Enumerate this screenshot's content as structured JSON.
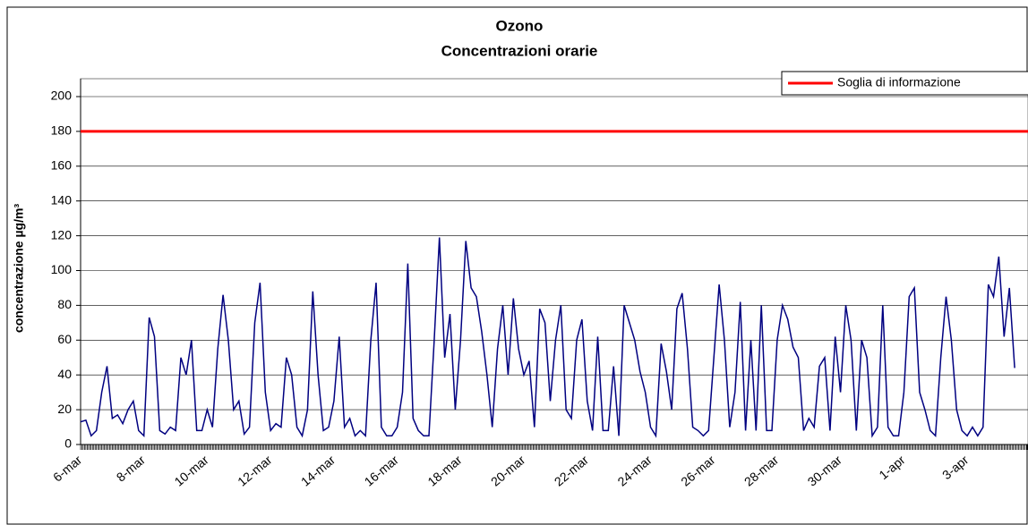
{
  "chart_data": {
    "type": "line",
    "title": "Ozono",
    "subtitle": "Concentrazioni orarie",
    "y_label": "concentrazione µg/m³",
    "categories": [
      "6-mar",
      null,
      null,
      null,
      null,
      null,
      null,
      null,
      null,
      null,
      null,
      null,
      "8-mar",
      null,
      null,
      null,
      null,
      null,
      null,
      null,
      null,
      null,
      null,
      null,
      "10-mar",
      null,
      null,
      null,
      null,
      null,
      null,
      null,
      null,
      null,
      null,
      null,
      "12-mar",
      null,
      null,
      null,
      null,
      null,
      null,
      null,
      null,
      null,
      null,
      null,
      "14-mar",
      null,
      null,
      null,
      null,
      null,
      null,
      null,
      null,
      null,
      null,
      null,
      "16-mar",
      null,
      null,
      null,
      null,
      null,
      null,
      null,
      null,
      null,
      null,
      null,
      "18-mar",
      null,
      null,
      null,
      null,
      null,
      null,
      null,
      null,
      null,
      null,
      null,
      "20-mar",
      null,
      null,
      null,
      null,
      null,
      null,
      null,
      null,
      null,
      null,
      null,
      "22-mar",
      null,
      null,
      null,
      null,
      null,
      null,
      null,
      null,
      null,
      null,
      null,
      "24-mar",
      null,
      null,
      null,
      null,
      null,
      null,
      null,
      null,
      null,
      null,
      null,
      "26-mar",
      null,
      null,
      null,
      null,
      null,
      null,
      null,
      null,
      null,
      null,
      null,
      "28-mar",
      null,
      null,
      null,
      null,
      null,
      null,
      null,
      null,
      null,
      null,
      null,
      "30-mar",
      null,
      null,
      null,
      null,
      null,
      null,
      null,
      null,
      null,
      null,
      null,
      "1-apr",
      null,
      null,
      null,
      null,
      null,
      null,
      null,
      null,
      null,
      null,
      null,
      "3-apr",
      null,
      null,
      null,
      null,
      null,
      null,
      null,
      null,
      null,
      null,
      null
    ],
    "series": [
      {
        "color": "#000080",
        "values": [
          13,
          14,
          5,
          8,
          30,
          45,
          15,
          17,
          12,
          20,
          25,
          8,
          5,
          73,
          62,
          8,
          6,
          10,
          8,
          50,
          40,
          60,
          8,
          8,
          20,
          10,
          55,
          86,
          60,
          20,
          25,
          6,
          10,
          70,
          93,
          30,
          8,
          12,
          10,
          50,
          40,
          10,
          5,
          20,
          88,
          40,
          8,
          10,
          25,
          62,
          10,
          15,
          5,
          8,
          5,
          60,
          93,
          10,
          5,
          5,
          10,
          30,
          104,
          15,
          8,
          5,
          5,
          60,
          119,
          50,
          75,
          20,
          60,
          117,
          90,
          85,
          65,
          40,
          10,
          55,
          80,
          40,
          84,
          55,
          40,
          48,
          10,
          78,
          70,
          25,
          60,
          80,
          20,
          15,
          60,
          72,
          25,
          8,
          62,
          8,
          8,
          45,
          5,
          80,
          70,
          60,
          42,
          30,
          10,
          5,
          58,
          42,
          20,
          78,
          87,
          55,
          10,
          8,
          5,
          8,
          50,
          92,
          60,
          10,
          30,
          82,
          8,
          60,
          8,
          80,
          8,
          8,
          60,
          80,
          72,
          56,
          50,
          8,
          15,
          10,
          45,
          50,
          8,
          62,
          30,
          80,
          60,
          8,
          60,
          50,
          5,
          10,
          80,
          10,
          5,
          5,
          30,
          85,
          90,
          30,
          20,
          8,
          5,
          50,
          85,
          60,
          20,
          8,
          5,
          10,
          5,
          10,
          92,
          85,
          108,
          62,
          90,
          44,
          null,
          null
        ]
      }
    ],
    "threshold": {
      "name": "Soglia di informazione",
      "value": 180,
      "color": "#ff0000"
    },
    "ylim": [
      0,
      200
    ],
    "yticks": [
      0,
      20,
      40,
      60,
      80,
      100,
      120,
      140,
      160,
      180,
      200
    ],
    "grid": true,
    "legend": "top-right"
  }
}
